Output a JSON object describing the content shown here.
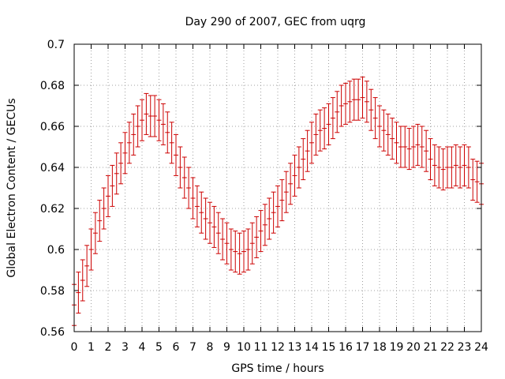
{
  "chart_data": {
    "type": "scatter",
    "title": "Day 290 of 2007, GEC from uqrg",
    "xlabel": "GPS time / hours",
    "ylabel": "Global Electron Content / GECUs",
    "xlim": [
      0,
      24
    ],
    "ylim": [
      0.56,
      0.7
    ],
    "x_ticks": [
      0,
      1,
      2,
      3,
      4,
      5,
      6,
      7,
      8,
      9,
      10,
      11,
      12,
      13,
      14,
      15,
      16,
      17,
      18,
      19,
      20,
      21,
      22,
      23,
      24
    ],
    "x_tick_labels": [
      "0",
      "1",
      "2",
      "3",
      "4",
      "5",
      "6",
      "7",
      "8",
      "9",
      "10",
      "11",
      "12",
      "13",
      "14",
      "15",
      "16",
      "17",
      "18",
      "19",
      "20",
      "21",
      "22",
      "23",
      "24"
    ],
    "y_ticks": [
      0.56,
      0.58,
      0.6,
      0.62,
      0.64,
      0.66,
      0.68,
      0.7
    ],
    "y_tick_labels": [
      "0.56",
      "0.58",
      "0.6",
      "0.62",
      "0.64",
      "0.66",
      "0.68",
      "0.7"
    ],
    "grid": true,
    "error_bar_halfwidth": 0.01,
    "colors": {
      "series": "#cc0000",
      "grid": "#a0a0a0",
      "axis": "#000000"
    },
    "series": [
      {
        "x": [
          0,
          0.25,
          0.5,
          0.75,
          1,
          1.25,
          1.5,
          1.75,
          2,
          2.25,
          2.5,
          2.75,
          3,
          3.25,
          3.5,
          3.75,
          4,
          4.25,
          4.5,
          4.75,
          5,
          5.25,
          5.5,
          5.75,
          6,
          6.25,
          6.5,
          6.75,
          7,
          7.25,
          7.5,
          7.75,
          8,
          8.25,
          8.5,
          8.75,
          9,
          9.25,
          9.5,
          9.75,
          10,
          10.25,
          10.5,
          10.75,
          11,
          11.25,
          11.5,
          11.75,
          12,
          12.25,
          12.5,
          12.75,
          13,
          13.25,
          13.5,
          13.75,
          14,
          14.25,
          14.5,
          14.75,
          15,
          15.25,
          15.5,
          15.75,
          16,
          16.25,
          16.5,
          16.75,
          17,
          17.25,
          17.5,
          17.75,
          18,
          18.25,
          18.5,
          18.75,
          19,
          19.25,
          19.5,
          19.75,
          20,
          20.25,
          20.5,
          20.75,
          21,
          21.25,
          21.5,
          21.75,
          22,
          22.25,
          22.5,
          22.75,
          23,
          23.25,
          23.5,
          23.75,
          24
        ],
        "y": [
          0.573,
          0.579,
          0.585,
          0.592,
          0.6,
          0.608,
          0.614,
          0.62,
          0.626,
          0.631,
          0.637,
          0.642,
          0.647,
          0.652,
          0.656,
          0.66,
          0.663,
          0.666,
          0.665,
          0.665,
          0.663,
          0.661,
          0.657,
          0.652,
          0.646,
          0.64,
          0.635,
          0.63,
          0.625,
          0.621,
          0.618,
          0.615,
          0.613,
          0.611,
          0.608,
          0.605,
          0.603,
          0.6,
          0.599,
          0.598,
          0.599,
          0.6,
          0.603,
          0.606,
          0.609,
          0.612,
          0.615,
          0.618,
          0.621,
          0.624,
          0.628,
          0.632,
          0.636,
          0.64,
          0.644,
          0.648,
          0.652,
          0.656,
          0.658,
          0.659,
          0.661,
          0.664,
          0.667,
          0.67,
          0.671,
          0.672,
          0.673,
          0.673,
          0.674,
          0.672,
          0.668,
          0.664,
          0.66,
          0.658,
          0.656,
          0.654,
          0.652,
          0.65,
          0.65,
          0.649,
          0.65,
          0.651,
          0.65,
          0.648,
          0.644,
          0.641,
          0.64,
          0.639,
          0.64,
          0.64,
          0.641,
          0.64,
          0.641,
          0.64,
          0.634,
          0.633,
          0.632
        ]
      }
    ]
  }
}
